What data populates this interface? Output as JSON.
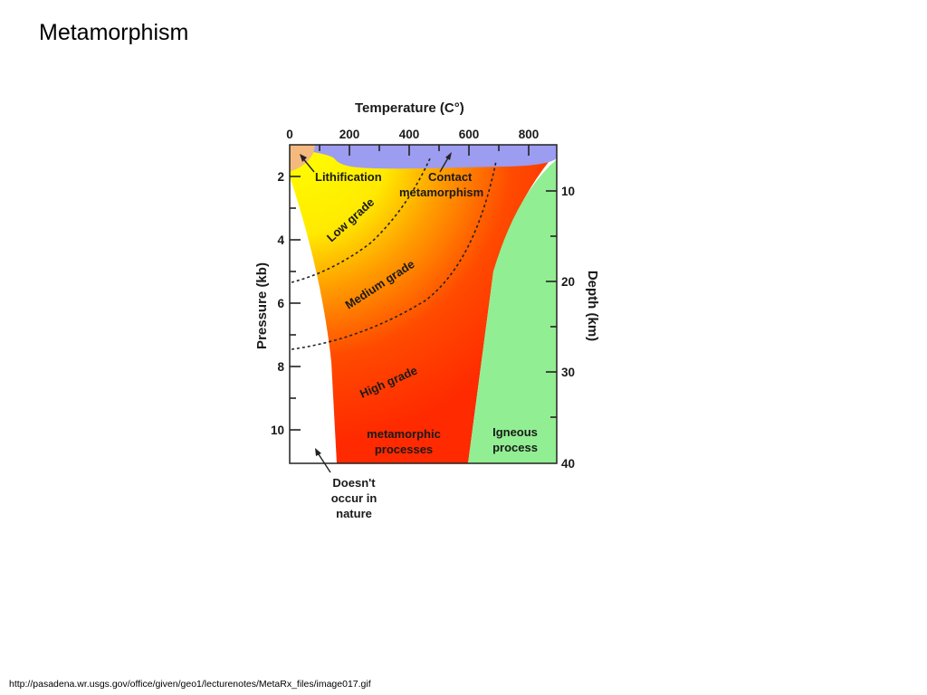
{
  "slide": {
    "title": "Metamorphism",
    "source_url": "http://pasadena.wr.usgs.gov/office/given/geo1/lecturenotes/MetaRx_files/image017.gif"
  },
  "diagram": {
    "top_axis": {
      "title": "Temperature (C°)",
      "ticks": [
        "0",
        "200",
        "400",
        "600",
        "800"
      ]
    },
    "left_axis": {
      "title": "Pressure (kb)",
      "ticks": [
        "2",
        "4",
        "6",
        "8",
        "10"
      ]
    },
    "right_axis": {
      "title": "Depth (km)",
      "ticks": [
        "10",
        "20",
        "30",
        "40"
      ]
    },
    "regions": {
      "lithification": "Lithification",
      "contact_line1": "Contact",
      "contact_line2": "metamorphism",
      "low_grade": "Low grade",
      "medium_grade": "Medium grade",
      "high_grade": "High grade",
      "metamorphic_line1": "metamorphic",
      "metamorphic_line2": "processes",
      "igneous_line1": "Igneous",
      "igneous_line2": "process",
      "nature_line1": "Doesn't",
      "nature_line2": "occur in",
      "nature_line3": "nature"
    },
    "colors": {
      "lithification": "#f4b97f",
      "contact": "#9c9cf0",
      "igneous": "#92ee92",
      "low": "#ffff00",
      "medium": "#ffa000",
      "high": "#ff2a00"
    }
  }
}
